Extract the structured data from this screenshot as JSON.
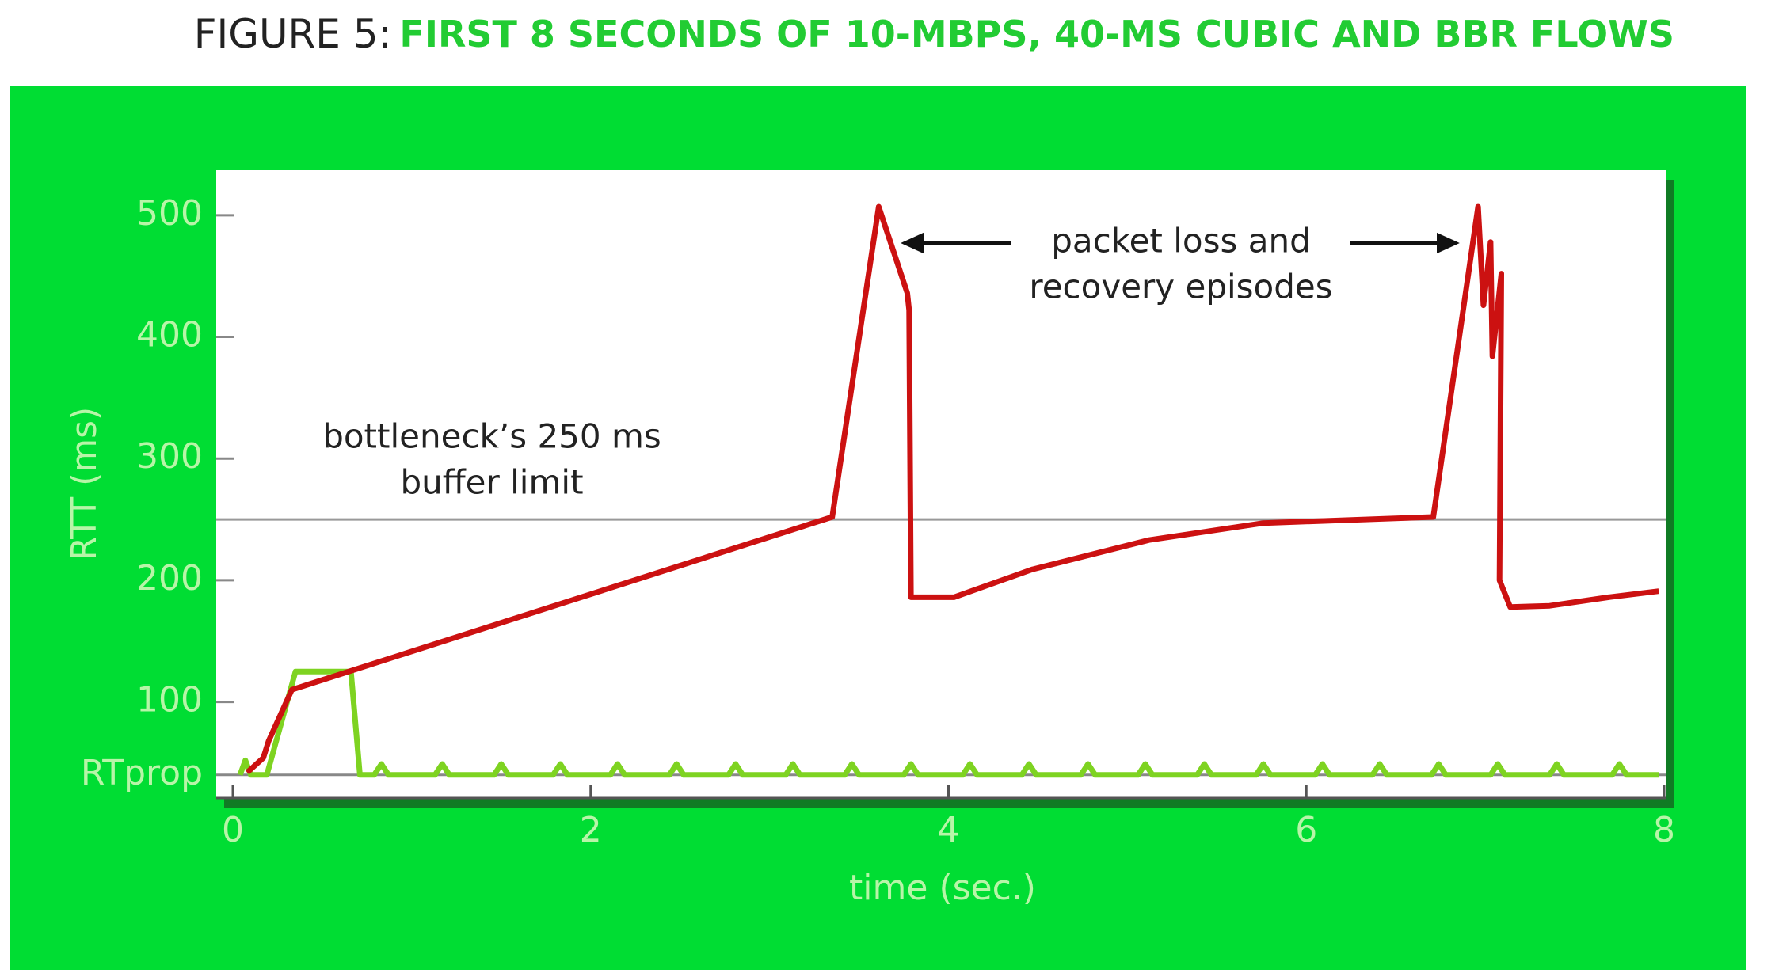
{
  "chart_data": {
    "type": "line",
    "title_label": "FIGURE 5:",
    "title": "FIRST 8 SECONDS OF 10-MBPS, 40-MS CUBIC AND BBR FLOWS",
    "x_label": "time (sec.)",
    "y_label": "RTT (ms)",
    "xlim": [
      0,
      8
    ],
    "xticks": [
      0,
      2,
      4,
      6,
      8
    ],
    "ylim": [
      21,
      537
    ],
    "yticks": [
      {
        "value": 40,
        "label": "RTprop"
      },
      100,
      200,
      300,
      400,
      500
    ],
    "reference_line": {
      "value": 250,
      "label": [
        "bottleneck’s 250 ms",
        "buffer limit"
      ]
    },
    "annotation": [
      "packet loss and",
      "recovery episodes"
    ],
    "series": [
      {
        "color": "#cc1111",
        "x": [
          0.08,
          0.17,
          0.2,
          0.33,
          3.35,
          3.61,
          3.77,
          3.78,
          3.79,
          4.03,
          4.47,
          5.12,
          5.76,
          6.71,
          6.96,
          6.99,
          7.03,
          7.04,
          7.09,
          7.08,
          7.14,
          7.36,
          7.69,
          7.97
        ],
        "values": [
          42,
          54,
          68,
          110,
          252,
          507,
          436,
          422,
          186,
          186,
          209,
          233,
          247,
          252,
          507,
          426,
          478,
          384,
          452,
          200,
          178,
          179,
          186,
          191
        ]
      },
      {
        "color": "#7ed321",
        "x": [
          0.04,
          0.07,
          0.1,
          0.19,
          0.35,
          0.66,
          0.71,
          0.79,
          0.83,
          0.87,
          1.13,
          1.17,
          1.21,
          1.46,
          1.5,
          1.54,
          1.79,
          1.83,
          1.87,
          2.11,
          2.15,
          2.19,
          2.44,
          2.48,
          2.52,
          2.77,
          2.81,
          2.85,
          3.09,
          3.13,
          3.17,
          3.42,
          3.46,
          3.5,
          3.75,
          3.79,
          3.83,
          4.08,
          4.12,
          4.16,
          4.41,
          4.45,
          4.49,
          4.74,
          4.78,
          4.82,
          5.06,
          5.1,
          5.14,
          5.39,
          5.43,
          5.47,
          5.72,
          5.76,
          5.8,
          6.05,
          6.09,
          6.13,
          6.37,
          6.41,
          6.45,
          6.7,
          6.74,
          6.78,
          7.03,
          7.07,
          7.11,
          7.36,
          7.4,
          7.44,
          7.71,
          7.75,
          7.79,
          7.97
        ],
        "values": [
          40,
          52,
          40,
          40,
          125,
          125,
          40,
          40,
          49,
          40,
          40,
          49,
          40,
          40,
          49,
          40,
          40,
          49,
          40,
          40,
          49,
          40,
          40,
          49,
          40,
          40,
          49,
          40,
          40,
          49,
          40,
          40,
          49,
          40,
          40,
          49,
          40,
          40,
          49,
          40,
          40,
          49,
          40,
          40,
          49,
          40,
          40,
          49,
          40,
          40,
          49,
          40,
          40,
          49,
          40,
          40,
          49,
          40,
          40,
          49,
          40,
          40,
          49,
          40,
          40,
          49,
          40,
          40,
          49,
          40,
          40,
          49,
          40,
          40
        ]
      }
    ]
  }
}
